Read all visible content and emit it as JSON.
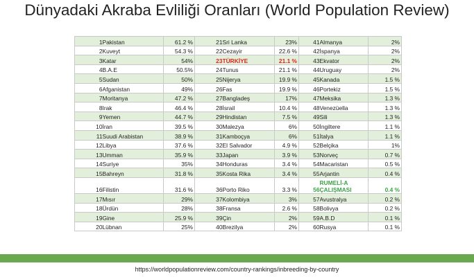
{
  "header": {
    "title": "Dünyadaki Akraba Evliliği Oranları (World Population Review)"
  },
  "table": {
    "rows": [
      [
        1,
        "Pakistan",
        "61.2 %",
        21,
        "Sri Lanka",
        "23%",
        41,
        "Almanya",
        "2%"
      ],
      [
        2,
        "Kuveyt",
        "54.3 %",
        22,
        "Cezayir",
        "22.6 %",
        42,
        "İspanya",
        "2%"
      ],
      [
        3,
        "Katar",
        "54%",
        23,
        "TÜRKİYE",
        "21.1 %",
        43,
        "Ekvator",
        "2%"
      ],
      [
        4,
        "B.A.E",
        "50.5%",
        24,
        "Tunus",
        "21.1 %",
        44,
        "Uruguay",
        "2%"
      ],
      [
        5,
        "Sudan",
        "50%",
        25,
        "Nijerya",
        "19.9 %",
        45,
        "Kanada",
        "1.5 %"
      ],
      [
        6,
        "Afganistan",
        "49%",
        26,
        "Fas",
        "19.9 %",
        46,
        "Portekiz",
        "1.5 %"
      ],
      [
        7,
        "Moritanya",
        "47.2 %",
        27,
        "Bangladeş",
        "17%",
        47,
        "Meksika",
        "1.3 %"
      ],
      [
        8,
        "Irak",
        "46.4 %",
        28,
        "İsrail",
        "10.4 %",
        48,
        "Venezüella",
        "1.3 %"
      ],
      [
        9,
        "Yemen",
        "44.7 %",
        29,
        "Hindistan",
        "7.5 %",
        49,
        "Sili",
        "1.3 %"
      ],
      [
        10,
        "İran",
        "39.5 %",
        30,
        "Malezya",
        "6%",
        50,
        "İngiltere",
        "1.1 %"
      ],
      [
        11,
        "Suudi Arabistan",
        "38.9 %",
        31,
        "Kamboçya",
        "6%",
        51,
        "İtalya",
        "1.1 %"
      ],
      [
        12,
        "Libya",
        "37.6 %",
        32,
        "El Salvador",
        "4.9 %",
        52,
        "Belçika",
        "1%"
      ],
      [
        13,
        "Umman",
        "35.9 %",
        33,
        "Japan",
        "3.9 %",
        53,
        "Norveç",
        "0.7 %"
      ],
      [
        14,
        "Suriye",
        "35%",
        34,
        "Honduras",
        "3.4 %",
        54,
        "Macaristan",
        "0.5 %"
      ],
      [
        15,
        "Bahreyn",
        "31.8 %",
        35,
        "Kosta Rika",
        "3.4 %",
        55,
        "Arjantin",
        "0.4 %"
      ],
      [
        16,
        "Filistin",
        "31.6 %",
        36,
        "Porto Riko",
        "3.3 %",
        56,
        "RUMELİ-A ÇALIŞMASI",
        "0.4 %"
      ],
      [
        17,
        "Mısır",
        "29%",
        37,
        "Kolombiya",
        "3%",
        57,
        "Avustralya",
        "0.2 %"
      ],
      [
        18,
        "Ürdün",
        "28%",
        38,
        "Fransa",
        "2.6 %",
        58,
        "Bolivya",
        "0.2 %"
      ],
      [
        19,
        "Gine",
        "25.9 %",
        39,
        "Çin",
        "2%",
        59,
        "A.B.D",
        "0.1 %"
      ],
      [
        20,
        "Lübnan",
        "25%",
        40,
        "Brezilya",
        "2%",
        60,
        "Rusya",
        "0.1 %"
      ]
    ]
  },
  "footer": {
    "url": "https://worldpopulationreview.com/country-rankings/inbreeding-by-country"
  }
}
